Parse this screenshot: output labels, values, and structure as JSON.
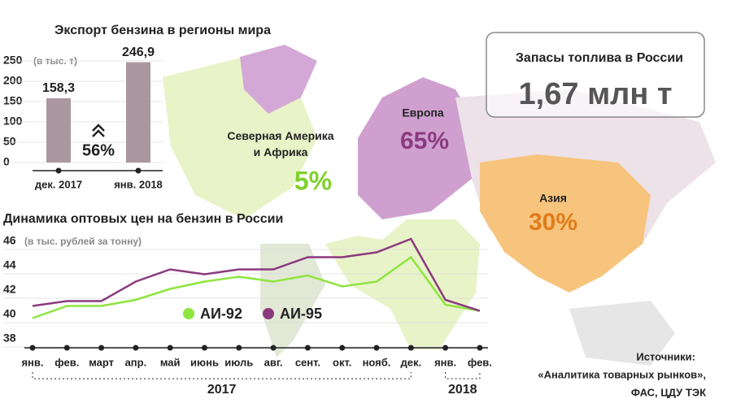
{
  "chart_data": [
    {
      "type": "bar",
      "title": "Экспорт бензина в регионы мира",
      "unit": "(в тыс. т)",
      "categories": [
        "дек. 2017",
        "янв. 2018"
      ],
      "values": [
        158.3,
        246.9
      ],
      "value_labels": [
        "158,3",
        "246,9"
      ],
      "color": "#ab979f",
      "ylim": [
        0,
        250
      ],
      "yticks": [
        0,
        50,
        100,
        150,
        200,
        250
      ],
      "annotation": "56%"
    },
    {
      "type": "line",
      "title": "Динамика оптовых цен на бензин в России",
      "unit": "(в тыс. рублей за тонну)",
      "categories": [
        "янв.",
        "фев.",
        "март",
        "апр.",
        "май",
        "июнь",
        "июль",
        "авг.",
        "сент.",
        "окт.",
        "нояб.",
        "дек.",
        "янв.",
        "фев."
      ],
      "years": [
        "2017",
        "2018"
      ],
      "series": [
        {
          "name": "АИ-92",
          "color": "#8ee53f",
          "values": [
            39.7,
            40.7,
            40.7,
            41.2,
            42.1,
            42.7,
            43.1,
            42.7,
            43.2,
            42.3,
            42.7,
            44.7,
            40.8,
            40.3
          ]
        },
        {
          "name": "АИ-95",
          "color": "#8b3a7e",
          "values": [
            40.7,
            41.1,
            41.1,
            42.7,
            43.7,
            43.3,
            43.7,
            43.7,
            44.7,
            44.7,
            45.1,
            46.2,
            41.2,
            40.3
          ]
        }
      ],
      "ylim": [
        38,
        46
      ],
      "yticks": [
        38,
        40,
        42,
        44,
        46
      ]
    }
  ],
  "map": {
    "regions": [
      {
        "name": "Северная Америка и Африка",
        "label": "5%"
      },
      {
        "name": "Европа",
        "label": "65%"
      },
      {
        "name": "Азия",
        "label": "30%"
      }
    ]
  },
  "stock": {
    "title": "Запасы топлива в России",
    "value": "1,67 млн т"
  },
  "sources": [
    "Источники:",
    "«Аналитика товарных рынков»,",
    "ФАС, ЦДУ ТЭК"
  ]
}
